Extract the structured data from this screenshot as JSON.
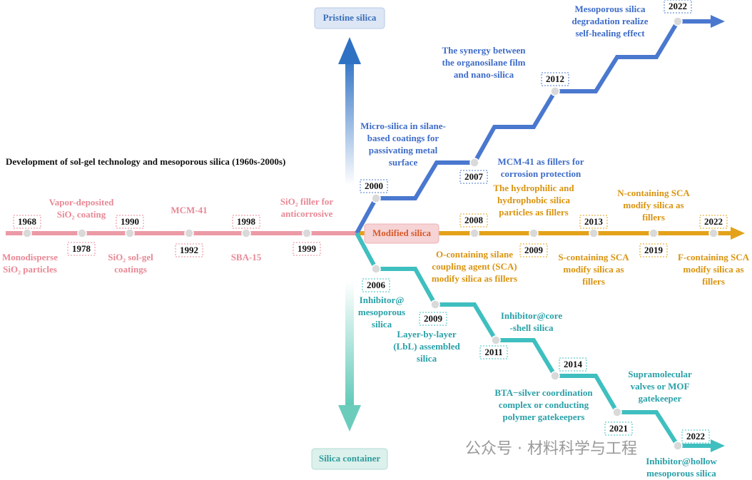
{
  "title": "Development of sol-gel technology and mesoporous silica (1960s-2000s)",
  "branches": {
    "pristine": "Pristine silica",
    "modified": "Modified silica",
    "container": "Silica container"
  },
  "early": [
    {
      "year": "1968",
      "label": [
        "Monodisperse",
        "SiO₂ particles"
      ]
    },
    {
      "year": "1978",
      "label": [
        "Vapor-deposited",
        "SiO₂ coating"
      ]
    },
    {
      "year": "1990",
      "label": [
        "SiO₂ sol-gel",
        "coatings"
      ]
    },
    {
      "year": "1992",
      "label": [
        "MCM-41"
      ]
    },
    {
      "year": "1998",
      "label": [
        "SBA-15"
      ]
    },
    {
      "year": "1999",
      "label": [
        "SiO₂ filler for",
        "anticorrosive"
      ]
    }
  ],
  "pristine_silica": [
    {
      "year": "2000",
      "label": [
        "Micro-silica in silane-",
        "based coatings for",
        "passivating metal",
        "surface"
      ]
    },
    {
      "year": "2007",
      "label": [
        "MCM-41 as fillers for",
        "corrosion protection"
      ]
    },
    {
      "year": "2012",
      "label": [
        "The synergy between",
        "the organosilane film",
        "and  nano-silica"
      ]
    },
    {
      "year": "2022",
      "label": [
        "Mesoporous silica",
        "degradation realize",
        "self-healing effect"
      ]
    }
  ],
  "modified_silica": [
    {
      "year": "2008",
      "label": [
        "O-containing silane",
        "coupling agent (SCA)",
        "modify silica as fillers"
      ]
    },
    {
      "year": "2009",
      "label": [
        "The hydrophilic and",
        "hydrophobic silica",
        "particles as fillers"
      ]
    },
    {
      "year": "2013",
      "label": [
        "S-containing SCA",
        "modify silica  as",
        "fillers"
      ]
    },
    {
      "year": "2019",
      "label": [
        "N-containing SCA",
        "modify silica as",
        "fillers"
      ]
    },
    {
      "year": "2022",
      "label": [
        "F-containing SCA",
        "modify silica  as",
        "fillers"
      ]
    }
  ],
  "silica_container": [
    {
      "year": "2006",
      "label": [
        "Inhibitor@",
        "mesoporous",
        "silica"
      ]
    },
    {
      "year": "2009",
      "label": [
        "Layer-by-layer",
        "(LbL) assembled",
        "silica"
      ]
    },
    {
      "year": "2011",
      "label": [
        "Inhibitor@core",
        "-shell silica"
      ]
    },
    {
      "year": "2014",
      "label": [
        "BTA−silver coordination",
        "complex or conducting",
        "polymer gatekeepers"
      ]
    },
    {
      "year": "2021",
      "label": [
        "Supramolecular",
        "valves or MOF",
        "gatekeeper"
      ]
    },
    {
      "year": "2022",
      "label": [
        "Inhibitor@hollow",
        "mesoporous silica"
      ]
    }
  ],
  "watermark": "公众号 · 材料科学与工程"
}
